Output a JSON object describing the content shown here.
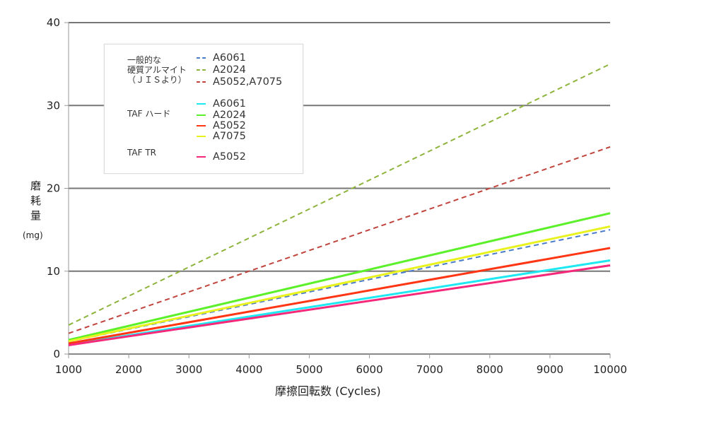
{
  "chart_data": {
    "type": "line",
    "xlabel": "摩擦回転数 (Cycles)",
    "ylabel": "磨耗量",
    "yunit": "(mg)",
    "xlim": [
      1000,
      10000
    ],
    "ylim": [
      0,
      40
    ],
    "xticks": [
      1000,
      2000,
      3000,
      4000,
      5000,
      6000,
      7000,
      8000,
      9000,
      10000
    ],
    "yticks": [
      0,
      10,
      20,
      30,
      40
    ],
    "grid": "horizontal",
    "legend_placement": "top-left",
    "legend_groups": [
      {
        "label_lines": [
          "一般的な",
          "硬質アルマイト",
          "（ＪＩＳより）"
        ],
        "series": [
          0,
          1,
          2
        ]
      },
      {
        "label_lines": [
          "TAF ハード"
        ],
        "series": [
          3,
          4,
          5,
          6
        ]
      },
      {
        "label_lines": [
          "TAF TR"
        ],
        "series": [
          7
        ]
      }
    ],
    "x": [
      1000,
      10000
    ],
    "series": [
      {
        "name": "A6061",
        "group": "一般的な硬質アルマイト（ＪＩＳより）",
        "style": "dashed",
        "color": "#4a7cc9",
        "values": [
          1.5,
          15.0
        ]
      },
      {
        "name": "A2024",
        "group": "一般的な硬質アルマイト（ＪＩＳより）",
        "style": "dashed",
        "color": "#8db43c",
        "values": [
          3.5,
          35.0
        ]
      },
      {
        "name": "A5052,A7075",
        "group": "一般的な硬質アルマイト（ＪＩＳより）",
        "style": "dashed",
        "color": "#c0443c",
        "values": [
          2.5,
          25.0
        ]
      },
      {
        "name": "A6061",
        "group": "TAF ハード",
        "style": "solid",
        "color": "#1ee8f2",
        "values": [
          1.13,
          11.3
        ]
      },
      {
        "name": "A2024",
        "group": "TAF ハード",
        "style": "solid",
        "color": "#5cf02a",
        "values": [
          1.7,
          17.0
        ]
      },
      {
        "name": "A5052",
        "group": "TAF ハード",
        "style": "solid",
        "color": "#ff3514",
        "values": [
          1.28,
          12.8
        ]
      },
      {
        "name": "A7075",
        "group": "TAF ハード",
        "style": "solid",
        "color": "#e8f21e",
        "values": [
          1.54,
          15.4
        ]
      },
      {
        "name": "A5052",
        "group": "TAF TR",
        "style": "solid",
        "color": "#f5287a",
        "values": [
          1.07,
          10.7
        ]
      }
    ]
  }
}
